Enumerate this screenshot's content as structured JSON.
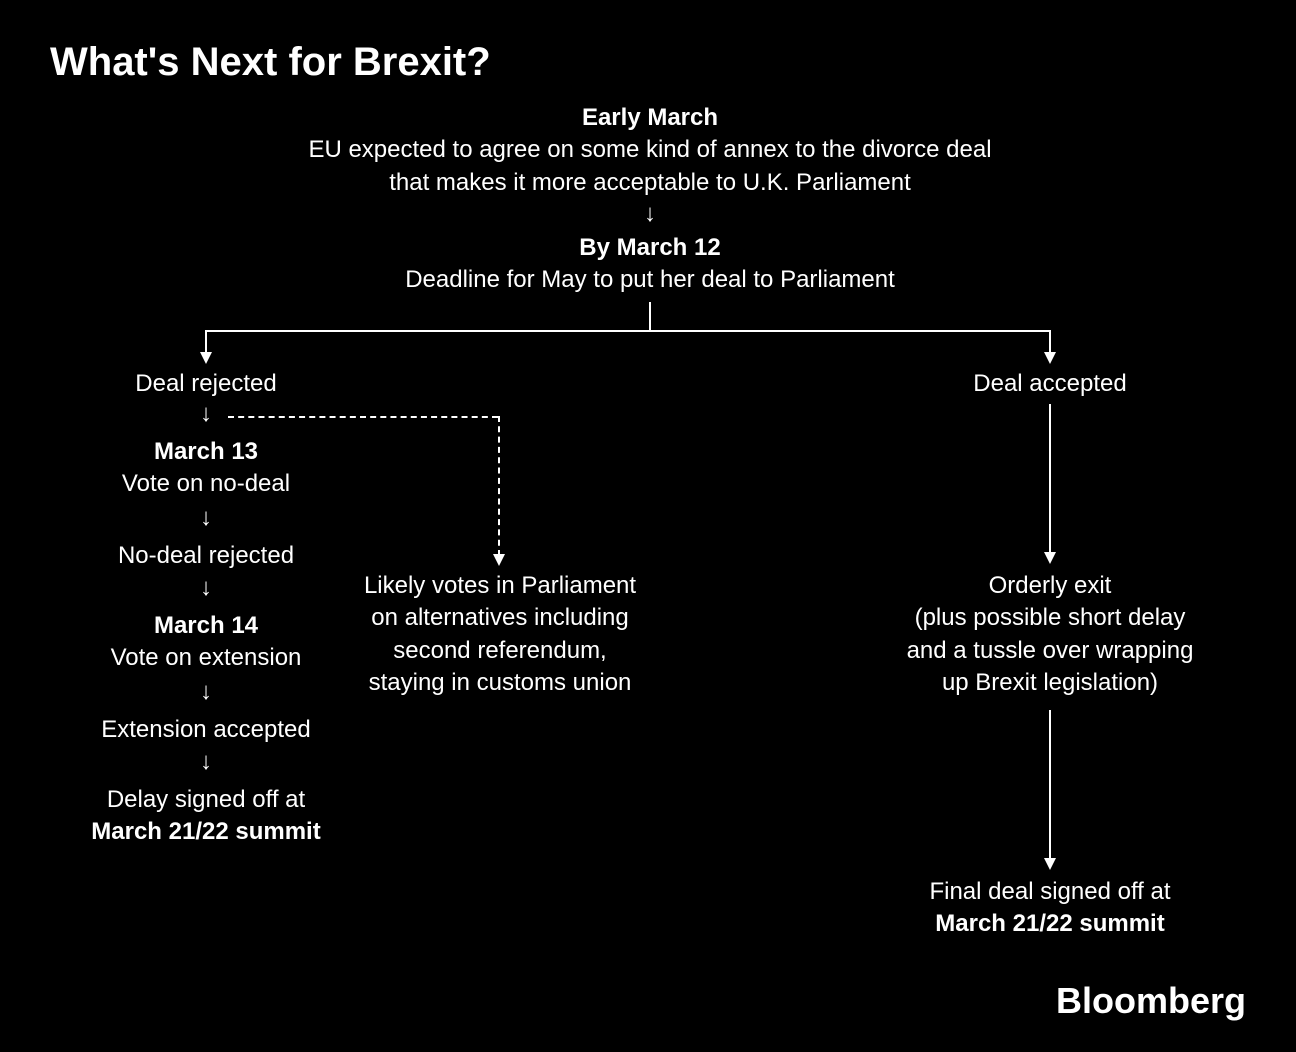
{
  "title": "What's Next for Brexit?",
  "attribution": "Bloomberg",
  "colors": {
    "background": "#000000",
    "text": "#ffffff",
    "line": "#ffffff"
  },
  "typography": {
    "title_fontsize": 40,
    "title_weight": 700,
    "body_fontsize": 24,
    "bold_weight": 700,
    "attribution_fontsize": 36
  },
  "flowchart": {
    "type": "flowchart",
    "nodes": {
      "n1": {
        "heading": "Early March",
        "body": "EU expected to agree on some kind of annex to the divorce deal\nthat makes it more acceptable to U.K. Parliament"
      },
      "n2": {
        "heading": "By March 12",
        "body": "Deadline for May to put her deal to Parliament"
      },
      "n3_left": {
        "body": "Deal rejected"
      },
      "n3_right": {
        "body": "Deal accepted"
      },
      "n4_left": {
        "heading": "March 13",
        "body": "Vote on no-deal"
      },
      "n4_mid": {
        "body": "Likely votes in Parliament\non alternatives including\nsecond referendum,\nstaying in customs union"
      },
      "n4_right": {
        "body": "Orderly exit\n(plus possible short delay\nand a tussle over wrapping\nup Brexit legislation)"
      },
      "n5_left": {
        "body": "No-deal rejected"
      },
      "n6_left": {
        "heading": "March 14",
        "body": "Vote on extension"
      },
      "n7_left": {
        "body": "Extension accepted"
      },
      "n8_left": {
        "prefix": "Delay signed off at",
        "bold": "March 21/22 summit"
      },
      "n8_right": {
        "prefix": "Final deal signed off at",
        "bold": "March 21/22 summit"
      }
    }
  }
}
